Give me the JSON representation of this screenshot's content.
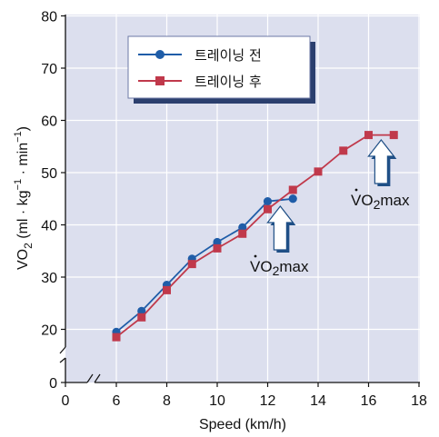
{
  "chart_data": {
    "type": "line",
    "xlabel": "Speed (km/h)",
    "ylabel_main": "VO",
    "ylabel_sub": "2",
    "ylabel_units": " (ml · kg",
    "ylabel_exp1": "−1",
    "ylabel_mid": " · min",
    "ylabel_exp2": "−1",
    "ylabel_close": ")",
    "xlim": [
      5,
      18
    ],
    "ylim": [
      15,
      80
    ],
    "x_ticks": [
      "0",
      "6",
      "8",
      "10",
      "12",
      "14",
      "16",
      "18"
    ],
    "y_ticks": [
      "0",
      "20",
      "30",
      "40",
      "50",
      "60",
      "70",
      "80"
    ],
    "axis_breaks": true,
    "grid": true,
    "background_color": "#dcdfee",
    "legend_position": "top-center",
    "series": [
      {
        "name": "트레이닝 전",
        "color": "#1f5da8",
        "marker": "circle",
        "x": [
          6,
          7,
          8,
          9,
          10,
          11,
          12,
          13
        ],
        "y": [
          19.5,
          23.5,
          28.5,
          33.5,
          36.7,
          39.5,
          44.5,
          45
        ]
      },
      {
        "name": "트레이닝 후",
        "color": "#c0394b",
        "marker": "square",
        "x": [
          6,
          7,
          8,
          9,
          10,
          11,
          12,
          13,
          14,
          15,
          16,
          17
        ],
        "y": [
          18.5,
          22.3,
          27.5,
          32.5,
          35.5,
          38.3,
          43,
          46.7,
          50.2,
          54.2,
          57.2,
          57.2
        ]
      }
    ],
    "annotations": [
      {
        "text_main": "VO",
        "text_sub": "2",
        "text_tail": "max",
        "x": 12.5,
        "y": 37.5
      },
      {
        "text_main": "VO",
        "text_sub": "2",
        "text_tail": "max",
        "x": 16.5,
        "y": 51
      }
    ]
  }
}
